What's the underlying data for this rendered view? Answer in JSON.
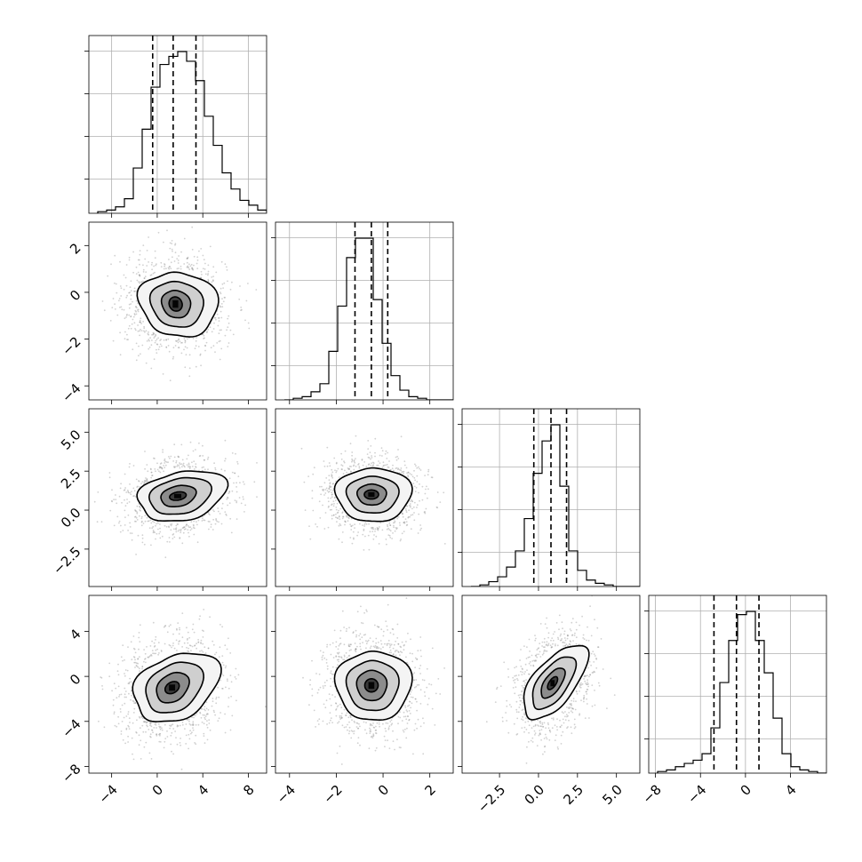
{
  "chart_data": {
    "type": "corner",
    "grid": true,
    "parameters": [
      {
        "range": [
          -6.0,
          9.6
        ],
        "ticks": [
          -4,
          0,
          4,
          8
        ],
        "tick_labels": [
          "−4",
          "0",
          "4",
          "8"
        ],
        "quantiles": [
          -0.4,
          1.4,
          3.4
        ],
        "hist_step": 0.78,
        "hist_values": [
          0.01,
          0.02,
          0.04,
          0.09,
          0.28,
          0.52,
          0.78,
          0.92,
          0.97,
          1.0,
          0.94,
          0.82,
          0.6,
          0.42,
          0.25,
          0.15,
          0.08,
          0.05,
          0.02,
          0.01
        ]
      },
      {
        "range": [
          -4.6,
          3.0
        ],
        "ticks": [
          -4,
          -2,
          0,
          2
        ],
        "tick_labels": [
          "−4",
          "−2",
          "0",
          "2"
        ],
        "quantiles": [
          -1.2,
          -0.5,
          0.2
        ],
        "hist_step": 0.38,
        "hist_values": [
          0.0,
          0.01,
          0.02,
          0.05,
          0.1,
          0.3,
          0.58,
          0.88,
          1.0,
          1.0,
          0.62,
          0.35,
          0.15,
          0.06,
          0.02,
          0.01,
          0.0,
          0.0,
          0.0,
          0.0
        ]
      },
      {
        "range": [
          -4.9,
          6.5
        ],
        "ticks": [
          -2.5,
          0.0,
          2.5,
          5.0
        ],
        "tick_labels": [
          "−2.5",
          "0.0",
          "2.5",
          "5.0"
        ],
        "quantiles": [
          -0.3,
          0.8,
          1.8
        ],
        "hist_step": 0.57,
        "hist_values": [
          0.0,
          0.01,
          0.03,
          0.06,
          0.12,
          0.22,
          0.42,
          0.7,
          0.9,
          1.0,
          0.62,
          0.22,
          0.1,
          0.04,
          0.02,
          0.01,
          0.0,
          0.0,
          0.0,
          0.0
        ]
      },
      {
        "range": [
          -8.6,
          7.2
        ],
        "ticks": [
          -8,
          -4,
          0,
          4
        ],
        "tick_labels": [
          "−8",
          "−4",
          "0",
          "4"
        ],
        "quantiles": [
          -2.8,
          -0.8,
          1.2
        ],
        "hist_step": 0.79,
        "hist_values": [
          0.01,
          0.02,
          0.04,
          0.06,
          0.08,
          0.12,
          0.28,
          0.56,
          0.82,
          0.98,
          1.0,
          0.82,
          0.62,
          0.34,
          0.12,
          0.04,
          0.02,
          0.01,
          0.0,
          0.0
        ]
      }
    ],
    "pairs": [
      {
        "x": 0,
        "y": 1,
        "center": [
          1.6,
          -0.5
        ],
        "spread": [
          2.2,
          1.0
        ],
        "rho": -0.05,
        "contours": [
          {
            "r": [
              0.55,
              0.32
            ],
            "wobble": [
              0.05,
              0.0,
              0.03,
              0.0
            ]
          },
          {
            "r": [
              1.2,
              0.62
            ],
            "wobble": [
              0.06,
              0.02,
              0.05,
              0.02
            ]
          },
          {
            "r": [
              2.15,
              1.05
            ],
            "wobble": [
              0.08,
              0.03,
              0.06,
              0.03
            ]
          },
          {
            "r": [
              3.15,
              1.5
            ],
            "wobble": [
              0.1,
              0.04,
              0.08,
              0.05
            ]
          }
        ]
      },
      {
        "x": 0,
        "y": 2,
        "center": [
          1.8,
          0.9
        ],
        "spread": [
          2.2,
          1.2
        ],
        "rho": 0.12,
        "contours": [
          {
            "r": [
              0.7,
              0.28
            ],
            "wobble": [
              0.04,
              0.0,
              0.02,
              0.0
            ]
          },
          {
            "r": [
              1.45,
              0.72
            ],
            "wobble": [
              0.06,
              0.02,
              0.04,
              0.02
            ]
          },
          {
            "r": [
              2.45,
              1.28
            ],
            "wobble": [
              0.1,
              0.03,
              0.08,
              0.03
            ]
          },
          {
            "r": [
              3.5,
              1.75
            ],
            "wobble": [
              0.1,
              0.05,
              0.1,
              0.05
            ]
          }
        ]
      },
      {
        "x": 0,
        "y": 3,
        "center": [
          1.3,
          -1.0
        ],
        "spread": [
          2.2,
          2.2
        ],
        "rho": 0.15,
        "contours": [
          {
            "r": [
              0.6,
              0.55
            ],
            "wobble": [
              0.03,
              0.0,
              0.02,
              0.0
            ]
          },
          {
            "r": [
              1.35,
              1.4
            ],
            "wobble": [
              0.05,
              0.02,
              0.04,
              0.02
            ]
          },
          {
            "r": [
              2.3,
              2.4
            ],
            "wobble": [
              0.08,
              0.03,
              0.08,
              0.03
            ]
          },
          {
            "r": [
              3.4,
              3.3
            ],
            "wobble": [
              0.1,
              0.05,
              0.1,
              0.05
            ]
          }
        ]
      },
      {
        "x": 1,
        "y": 2,
        "center": [
          -0.5,
          1.0
        ],
        "spread": [
          1.0,
          1.2
        ],
        "rho": 0.0,
        "contours": [
          {
            "r": [
              0.3,
              0.3
            ],
            "wobble": [
              0.02,
              0.0,
              0.01,
              0.0
            ]
          },
          {
            "r": [
              0.6,
              0.7
            ],
            "wobble": [
              0.04,
              0.02,
              0.03,
              0.02
            ]
          },
          {
            "r": [
              1.05,
              1.25
            ],
            "wobble": [
              0.06,
              0.03,
              0.05,
              0.03
            ]
          },
          {
            "r": [
              1.5,
              1.85
            ],
            "wobble": [
              0.08,
              0.04,
              0.06,
              0.04
            ]
          }
        ]
      },
      {
        "x": 1,
        "y": 3,
        "center": [
          -0.5,
          -0.8
        ],
        "spread": [
          1.0,
          2.2
        ],
        "rho": 0.0,
        "contours": [
          {
            "r": [
              0.28,
              0.6
            ],
            "wobble": [
              0.02,
              0.0,
              0.01,
              0.0
            ]
          },
          {
            "r": [
              0.62,
              1.4
            ],
            "wobble": [
              0.04,
              0.02,
              0.03,
              0.02
            ]
          },
          {
            "r": [
              1.05,
              2.35
            ],
            "wobble": [
              0.06,
              0.03,
              0.05,
              0.03
            ]
          },
          {
            "r": [
              1.5,
              3.3
            ],
            "wobble": [
              0.08,
              0.04,
              0.06,
              0.04
            ]
          }
        ]
      },
      {
        "x": 2,
        "y": 3,
        "center": [
          0.9,
          -0.6
        ],
        "spread": [
          1.2,
          2.2
        ],
        "rho": 0.35,
        "contours": [
          {
            "r": [
              0.3,
              0.55
            ],
            "wobble": [
              0.02,
              0.0,
              0.01,
              0.0
            ]
          },
          {
            "r": [
              0.7,
              1.3
            ],
            "wobble": [
              0.04,
              0.02,
              0.03,
              0.02
            ]
          },
          {
            "r": [
              1.25,
              2.3
            ],
            "wobble": [
              0.06,
              0.03,
              0.05,
              0.03
            ]
          },
          {
            "r": [
              1.8,
              3.3
            ],
            "wobble": [
              0.1,
              0.04,
              0.08,
              0.04
            ]
          }
        ]
      }
    ]
  }
}
